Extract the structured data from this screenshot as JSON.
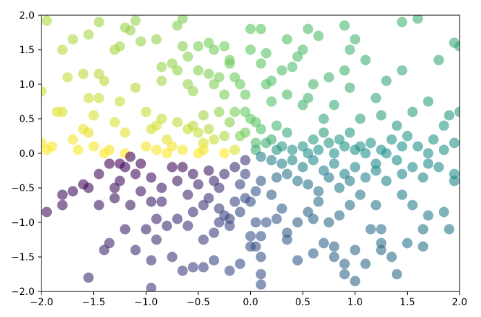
{
  "chart_data": {
    "type": "scatter",
    "title": "",
    "xlabel": "",
    "ylabel": "",
    "xlim": [
      -2.0,
      2.0
    ],
    "ylim": [
      -2.0,
      2.0
    ],
    "grid": false,
    "legend": "none",
    "marker": "circle",
    "alpha": 0.6,
    "colormap": "viridis",
    "color_encoding": "angle of (x, y) around the origin",
    "x_ticks": [
      "−2.0",
      "−1.5",
      "−1.0",
      "−0.5",
      "0.0",
      "0.5",
      "1.0",
      "1.5",
      "2.0"
    ],
    "y_ticks": [
      "−2.0",
      "−1.5",
      "−1.0",
      "−0.5",
      "0.0",
      "0.5",
      "1.0",
      "1.5",
      "2.0"
    ],
    "points": [
      [
        -1.95,
        1.92
      ],
      [
        -1.8,
        1.5
      ],
      [
        -1.7,
        1.65
      ],
      [
        -1.55,
        1.72
      ],
      [
        -1.45,
        1.9
      ],
      [
        -1.3,
        1.5
      ],
      [
        -1.25,
        1.55
      ],
      [
        -1.1,
        1.92
      ],
      [
        -1.05,
        1.62
      ],
      [
        -1.15,
        1.78
      ],
      [
        -1.2,
        1.82
      ],
      [
        -1.6,
        1.15
      ],
      [
        -1.75,
        1.1
      ],
      [
        -1.45,
        1.15
      ],
      [
        -1.4,
        1.05
      ],
      [
        -1.55,
        0.8
      ],
      [
        -1.5,
        0.55
      ],
      [
        -1.45,
        0.8
      ],
      [
        -1.3,
        0.45
      ],
      [
        -1.2,
        0.3
      ],
      [
        -1.1,
        0.95
      ],
      [
        -1.0,
        0.6
      ],
      [
        -0.95,
        0.35
      ],
      [
        -0.9,
        0.4
      ],
      [
        -0.85,
        1.05
      ],
      [
        -0.8,
        0.2
      ],
      [
        -0.75,
        0.1
      ],
      [
        -0.7,
        0.45
      ],
      [
        -0.6,
        0.35
      ],
      [
        -0.55,
        0.4
      ],
      [
        -0.5,
        0.3
      ],
      [
        -0.45,
        0.15
      ],
      [
        -0.4,
        0.35
      ],
      [
        -0.35,
        0.2
      ],
      [
        -1.8,
        0.6
      ],
      [
        -1.85,
        0.6
      ],
      [
        -1.7,
        0.2
      ],
      [
        -1.6,
        0.35
      ],
      [
        -1.55,
        0.3
      ],
      [
        -1.9,
        0.1
      ],
      [
        -2.0,
        0.15
      ],
      [
        -1.95,
        0.05
      ],
      [
        -2.0,
        0.9
      ],
      [
        -1.65,
        0.05
      ],
      [
        -1.5,
        0.1
      ],
      [
        -1.4,
        0.0
      ],
      [
        -1.35,
        0.05
      ],
      [
        -1.2,
        0.0
      ],
      [
        -1.0,
        0.1
      ],
      [
        -0.9,
        0.05
      ],
      [
        -0.8,
        0.0
      ],
      [
        -0.65,
        0.05
      ],
      [
        -0.5,
        0.0
      ],
      [
        -0.45,
        0.05
      ],
      [
        -0.25,
        0.0
      ],
      [
        -0.15,
        0.05
      ],
      [
        -0.1,
        0.25
      ],
      [
        -0.05,
        0.3
      ],
      [
        -0.2,
        0.45
      ],
      [
        -0.3,
        0.6
      ],
      [
        -0.25,
        0.85
      ],
      [
        -0.3,
        1.1
      ],
      [
        -0.2,
        1.35
      ],
      [
        -0.15,
        1.1
      ],
      [
        -0.4,
        1.15
      ],
      [
        -0.5,
        1.2
      ],
      [
        -0.6,
        1.0
      ],
      [
        -0.7,
        1.2
      ],
      [
        -0.6,
        1.4
      ],
      [
        -0.4,
        1.6
      ],
      [
        -0.35,
        1.5
      ],
      [
        -0.25,
        1.55
      ],
      [
        -0.2,
        1.3
      ],
      [
        -0.5,
        1.55
      ],
      [
        -0.65,
        1.55
      ],
      [
        -0.75,
        1.3
      ],
      [
        -0.85,
        1.25
      ],
      [
        -0.9,
        1.65
      ],
      [
        -0.7,
        1.85
      ],
      [
        -0.65,
        1.95
      ],
      [
        -0.35,
        1.0
      ],
      [
        -0.1,
        1.0
      ],
      [
        -0.05,
        0.85
      ],
      [
        0.0,
        1.5
      ],
      [
        0.0,
        0.5
      ],
      [
        -0.15,
        0.6
      ],
      [
        -0.05,
        0.6
      ],
      [
        0.05,
        0.45
      ],
      [
        0.1,
        1.3
      ],
      [
        0.15,
        1.0
      ],
      [
        -0.45,
        0.55
      ],
      [
        -0.55,
        0.9
      ],
      [
        -0.25,
        0.25
      ],
      [
        -0.85,
        0.5
      ],
      [
        -1.25,
        0.75
      ],
      [
        0.0,
        1.8
      ],
      [
        0.1,
        1.8
      ],
      [
        0.05,
        0.15
      ],
      [
        0.1,
        0.35
      ],
      [
        0.15,
        1.45
      ],
      [
        0.2,
        1.05
      ],
      [
        0.2,
        0.75
      ],
      [
        0.25,
        0.4
      ],
      [
        0.3,
        1.2
      ],
      [
        0.35,
        0.85
      ],
      [
        0.35,
        1.65
      ],
      [
        0.4,
        1.25
      ],
      [
        0.5,
        1.5
      ],
      [
        0.5,
        0.7
      ],
      [
        0.55,
        0.8
      ],
      [
        0.65,
        1.7
      ],
      [
        0.7,
        0.5
      ],
      [
        0.75,
        1.1
      ],
      [
        0.8,
        0.7
      ],
      [
        0.9,
        1.85
      ],
      [
        0.95,
        1.5
      ],
      [
        0.95,
        0.95
      ],
      [
        1.0,
        1.65
      ],
      [
        1.05,
        0.5
      ],
      [
        1.1,
        1.35
      ],
      [
        1.2,
        0.8
      ],
      [
        1.25,
        0.55
      ],
      [
        1.3,
        1.05
      ],
      [
        1.4,
        0.4
      ],
      [
        1.45,
        1.2
      ],
      [
        1.55,
        0.6
      ],
      [
        1.6,
        1.95
      ],
      [
        1.7,
        0.75
      ],
      [
        1.8,
        1.35
      ],
      [
        1.9,
        0.55
      ],
      [
        1.95,
        1.6
      ],
      [
        2.0,
        1.55
      ],
      [
        1.45,
        1.9
      ],
      [
        1.75,
        0.2
      ],
      [
        1.85,
        0.4
      ],
      [
        2.0,
        0.6
      ],
      [
        0.9,
        1.2
      ],
      [
        0.6,
        1.0
      ],
      [
        0.45,
        1.4
      ],
      [
        0.55,
        1.8
      ],
      [
        0.2,
        0.2
      ],
      [
        0.35,
        0.3
      ],
      [
        0.5,
        0.1
      ],
      [
        0.6,
        0.2
      ],
      [
        0.7,
        0.3
      ],
      [
        0.75,
        0.15
      ],
      [
        0.85,
        0.2
      ],
      [
        0.95,
        0.3
      ],
      [
        1.05,
        0.1
      ],
      [
        1.15,
        0.15
      ],
      [
        1.25,
        0.05
      ],
      [
        1.35,
        0.2
      ],
      [
        1.45,
        0.1
      ],
      [
        1.5,
        0.25
      ],
      [
        1.6,
        0.1
      ],
      [
        1.7,
        0.0
      ],
      [
        1.85,
        0.05
      ],
      [
        1.95,
        0.15
      ],
      [
        0.3,
        0.1
      ],
      [
        0.4,
        0.05
      ],
      [
        0.55,
        0.0
      ],
      [
        0.65,
        0.05
      ],
      [
        0.8,
        0.0
      ],
      [
        0.9,
        0.1
      ],
      [
        1.0,
        0.05
      ],
      [
        1.1,
        0.0
      ],
      [
        1.3,
        0.0
      ],
      [
        0.25,
        0.05
      ],
      [
        0.15,
        0.15
      ],
      [
        0.05,
        0.05
      ],
      [
        0.1,
        -0.05
      ],
      [
        0.2,
        -0.1
      ],
      [
        0.3,
        -0.15
      ],
      [
        0.4,
        -0.1
      ],
      [
        0.5,
        -0.2
      ],
      [
        0.6,
        -0.1
      ],
      [
        0.7,
        -0.25
      ],
      [
        0.8,
        -0.15
      ],
      [
        0.9,
        -0.3
      ],
      [
        1.0,
        -0.2
      ],
      [
        1.1,
        -0.35
      ],
      [
        1.2,
        -0.25
      ],
      [
        1.3,
        -0.4
      ],
      [
        1.45,
        -0.3
      ],
      [
        1.55,
        -0.2
      ],
      [
        1.65,
        -0.35
      ],
      [
        1.8,
        -0.2
      ],
      [
        1.95,
        -0.3
      ],
      [
        1.95,
        -0.4
      ],
      [
        1.7,
        -0.15
      ],
      [
        1.4,
        -0.1
      ],
      [
        1.2,
        -0.15
      ],
      [
        0.95,
        -0.4
      ],
      [
        0.85,
        -0.5
      ],
      [
        0.75,
        -0.35
      ],
      [
        0.65,
        -0.55
      ],
      [
        0.55,
        -0.45
      ],
      [
        0.45,
        -0.4
      ],
      [
        0.35,
        -0.3
      ],
      [
        0.25,
        -0.35
      ],
      [
        1.2,
        -0.75
      ],
      [
        1.45,
        -0.6
      ],
      [
        1.55,
        -0.75
      ],
      [
        1.7,
        -0.9
      ],
      [
        1.85,
        -0.85
      ],
      [
        1.9,
        -1.1
      ],
      [
        1.65,
        -1.35
      ],
      [
        1.5,
        -1.3
      ],
      [
        1.35,
        -1.5
      ],
      [
        1.25,
        -1.4
      ],
      [
        1.15,
        -1.1
      ],
      [
        1.05,
        -0.6
      ],
      [
        0.95,
        -0.75
      ],
      [
        0.85,
        -0.9
      ],
      [
        0.75,
        -1.0
      ],
      [
        0.7,
        -1.3
      ],
      [
        0.65,
        -0.7
      ],
      [
        0.55,
        -0.85
      ],
      [
        0.45,
        -1.0
      ],
      [
        0.35,
        -1.15
      ],
      [
        1.0,
        -1.85
      ],
      [
        1.1,
        -1.6
      ],
      [
        1.25,
        -1.1
      ],
      [
        1.4,
        -1.75
      ],
      [
        0.8,
        -1.35
      ],
      [
        0.6,
        -1.45
      ],
      [
        0.45,
        -1.55
      ],
      [
        0.35,
        -1.25
      ],
      [
        0.25,
        -0.95
      ],
      [
        0.15,
        -1.0
      ],
      [
        0.1,
        -1.2
      ],
      [
        0.05,
        -1.35
      ],
      [
        0.0,
        -1.2
      ],
      [
        0.0,
        -1.35
      ],
      [
        0.05,
        -1.0
      ],
      [
        0.1,
        -1.5
      ],
      [
        0.1,
        -1.75
      ],
      [
        0.1,
        -1.9
      ],
      [
        0.9,
        -1.6
      ],
      [
        0.9,
        -1.75
      ],
      [
        0.8,
        -1.5
      ],
      [
        1.0,
        -1.4
      ],
      [
        1.25,
        -1.3
      ],
      [
        1.65,
        -1.1
      ],
      [
        0.6,
        -0.95
      ],
      [
        0.3,
        -0.8
      ],
      [
        0.2,
        -0.6
      ],
      [
        0.1,
        -0.4
      ],
      [
        0.05,
        -0.55
      ],
      [
        0.0,
        -0.7
      ],
      [
        -0.05,
        -0.3
      ],
      [
        -0.1,
        -0.45
      ],
      [
        -0.15,
        -0.2
      ],
      [
        -0.25,
        -0.3
      ],
      [
        -0.3,
        -0.5
      ],
      [
        -0.4,
        -0.25
      ],
      [
        -0.5,
        -0.45
      ],
      [
        -0.55,
        -0.3
      ],
      [
        -0.6,
        -0.6
      ],
      [
        -0.7,
        -0.4
      ],
      [
        -0.75,
        -0.2
      ],
      [
        -0.85,
        -0.5
      ],
      [
        -0.95,
        -0.35
      ],
      [
        -1.05,
        -0.55
      ],
      [
        -1.1,
        -0.3
      ],
      [
        -1.2,
        -0.2
      ],
      [
        -1.25,
        -0.4
      ],
      [
        -1.35,
        -0.15
      ],
      [
        -1.45,
        -0.3
      ],
      [
        -1.55,
        -0.5
      ],
      [
        -1.6,
        -0.45
      ],
      [
        -1.7,
        -0.55
      ],
      [
        -1.8,
        -0.75
      ],
      [
        -1.8,
        -0.6
      ],
      [
        -1.95,
        -0.85
      ],
      [
        -1.45,
        -0.75
      ],
      [
        -1.3,
        -0.65
      ],
      [
        -1.15,
        -0.75
      ],
      [
        -0.95,
        -0.7
      ],
      [
        -0.85,
        -0.7
      ],
      [
        -1.2,
        -1.1
      ],
      [
        -1.35,
        -1.3
      ],
      [
        -1.4,
        -1.4
      ],
      [
        -1.0,
        -1.1
      ],
      [
        -0.9,
        -1.25
      ],
      [
        -0.75,
        -1.5
      ],
      [
        -0.65,
        -1.7
      ],
      [
        -0.55,
        -1.65
      ],
      [
        -0.45,
        -1.65
      ],
      [
        -0.35,
        -1.55
      ],
      [
        -1.55,
        -1.8
      ],
      [
        -1.1,
        -1.4
      ],
      [
        -0.95,
        -1.55
      ],
      [
        -0.8,
        -1.05
      ],
      [
        -0.7,
        -0.95
      ],
      [
        -0.55,
        -0.85
      ],
      [
        -0.45,
        -0.75
      ],
      [
        -0.4,
        -0.65
      ],
      [
        -0.3,
        -0.8
      ],
      [
        -0.2,
        -0.95
      ],
      [
        -0.1,
        -0.85
      ],
      [
        -0.05,
        -0.65
      ],
      [
        -0.15,
        -0.7
      ],
      [
        -0.2,
        -1.05
      ],
      [
        -0.35,
        -1.15
      ],
      [
        -0.45,
        -1.25
      ],
      [
        -0.3,
        -1.0
      ],
      [
        -0.25,
        -0.9
      ],
      [
        -0.6,
        -1.05
      ],
      [
        -0.95,
        -1.95
      ],
      [
        -1.25,
        -0.15
      ],
      [
        -1.15,
        -0.05
      ],
      [
        -1.05,
        -0.15
      ],
      [
        -1.3,
        -0.5
      ],
      [
        -0.9,
        -0.95
      ],
      [
        -0.35,
        -0.4
      ],
      [
        -0.05,
        -0.1
      ],
      [
        -0.65,
        -0.2
      ],
      [
        -0.2,
        -1.7
      ],
      [
        -0.1,
        -1.6
      ]
    ]
  }
}
